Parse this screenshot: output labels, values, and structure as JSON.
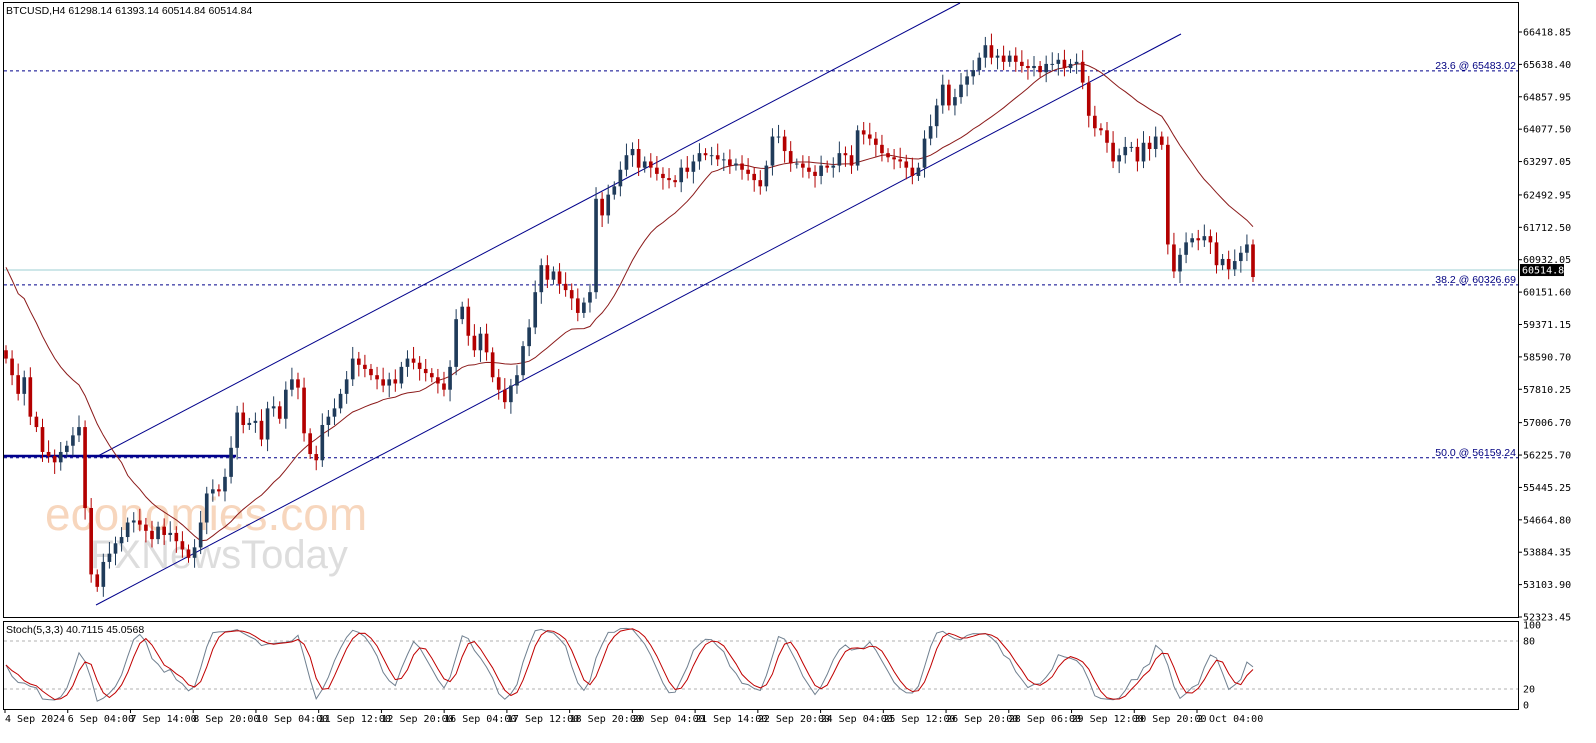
{
  "chart_data": {
    "type": "candlestick",
    "symbol_line": "BTCUSD,H4  61298.14 61393.14 60514.84 60514.84",
    "timeframe": "H4",
    "ohlc_last": {
      "open": 61298.14,
      "high": 61393.14,
      "low": 60514.84,
      "close": 60514.84
    },
    "current_price_label": "60514.84",
    "price_ylim": [
      52323.45,
      66418.85
    ],
    "price_ticks": [
      "66418.85",
      "65638.40",
      "64857.95",
      "64077.50",
      "63297.05",
      "62492.95",
      "61712.50",
      "60932.05",
      "60151.60",
      "59371.15",
      "58590.70",
      "57810.25",
      "57006.70",
      "56225.70",
      "55445.25",
      "54664.80",
      "53884.35",
      "53103.90",
      "52323.45"
    ],
    "x_labels": [
      "4 Sep 2024",
      "6 Sep 04:00",
      "7 Sep 14:00",
      "8 Sep 20:00",
      "10 Sep 04:00",
      "11 Sep 12:00",
      "12 Sep 20:00",
      "16 Sep 04:00",
      "17 Sep 12:00",
      "18 Sep 20:00",
      "20 Sep 04:00",
      "21 Sep 14:00",
      "22 Sep 20:00",
      "24 Sep 04:00",
      "25 Sep 12:00",
      "26 Sep 20:00",
      "28 Sep 06:00",
      "29 Sep 12:00",
      "30 Sep 20:00",
      "2 Oct 04:00"
    ],
    "fib_levels": [
      {
        "label": "23.6 @ 65483.02",
        "price": 65483.02
      },
      {
        "label": "38.2 @ 60326.69",
        "price": 60326.69
      },
      {
        "label": "50.0 @ 56159.24",
        "price": 56159.24
      }
    ],
    "candles_close": [
      58550,
      58150,
      57700,
      58100,
      57150,
      56900,
      56300,
      56200,
      56050,
      56300,
      56450,
      56700,
      56900,
      54950,
      53350,
      53050,
      53650,
      53850,
      54100,
      54250,
      54600,
      54650,
      54550,
      54400,
      54200,
      54500,
      54300,
      54350,
      54150,
      53950,
      53750,
      54000,
      54600,
      55300,
      55400,
      55350,
      55700,
      56400,
      57250,
      56950,
      57000,
      57050,
      56600,
      57350,
      57400,
      57100,
      57800,
      58050,
      57850,
      56750,
      56250,
      56100,
      56950,
      57150,
      57350,
      57700,
      58050,
      58550,
      58400,
      58300,
      58150,
      58050,
      57900,
      58050,
      57950,
      58350,
      58550,
      58450,
      58300,
      58200,
      58100,
      57950,
      57800,
      58350,
      59500,
      59800,
      59100,
      58750,
      59150,
      58700,
      58100,
      57800,
      57500,
      57900,
      58150,
      58850,
      59300,
      60150,
      60800,
      60450,
      60650,
      60350,
      60200,
      60000,
      59650,
      59900,
      60150,
      62400,
      62000,
      62500,
      62700,
      63100,
      63450,
      63600,
      63150,
      63300,
      63150,
      63000,
      62900,
      62850,
      62800,
      63150,
      63050,
      63300,
      63500,
      63450,
      63450,
      63350,
      63350,
      63200,
      63250,
      63100,
      63000,
      62850,
      62700,
      63200,
      63900,
      63900,
      63550,
      63250,
      63250,
      63150,
      63050,
      62950,
      63200,
      63150,
      63200,
      63500,
      63450,
      63200,
      64050,
      63950,
      63850,
      63700,
      63500,
      63400,
      63350,
      63300,
      63150,
      62950,
      63150,
      63850,
      64150,
      64650,
      65150,
      64650,
      64850,
      65150,
      65350,
      65500,
      65800,
      66100,
      65800,
      65850,
      65700,
      65850,
      65700,
      65600,
      65550,
      65600,
      65450,
      65650,
      65650,
      65750,
      65550,
      65650,
      65700,
      65200,
      64400,
      64100,
      64050,
      63750,
      63300,
      63450,
      63650,
      63650,
      63300,
      63750,
      63600,
      63900,
      63700,
      61300,
      60650,
      61050,
      61350,
      61450,
      61400,
      61500,
      61350,
      60800,
      60950,
      60700,
      60900,
      61100,
      61300,
      60514.84
    ],
    "oscillator": {
      "name": "Stoch(5,3,3) 40.7115 45.0568",
      "k": 40.7115,
      "d": 45.0568,
      "ylim": [
        0,
        100
      ],
      "ticks": [
        "100",
        "80",
        "20",
        "0"
      ],
      "levels": [
        20,
        80
      ]
    },
    "colors": {
      "bull": "#1f3b5a",
      "bear": "#b30000",
      "ma": "#8b1a1a",
      "channel": "#00008b",
      "fib": "#00008b",
      "stoch_main": "#708090",
      "stoch_signal": "#c00000"
    }
  },
  "watermark": {
    "line1": "economies.com",
    "line2": "FXNewsToday"
  }
}
